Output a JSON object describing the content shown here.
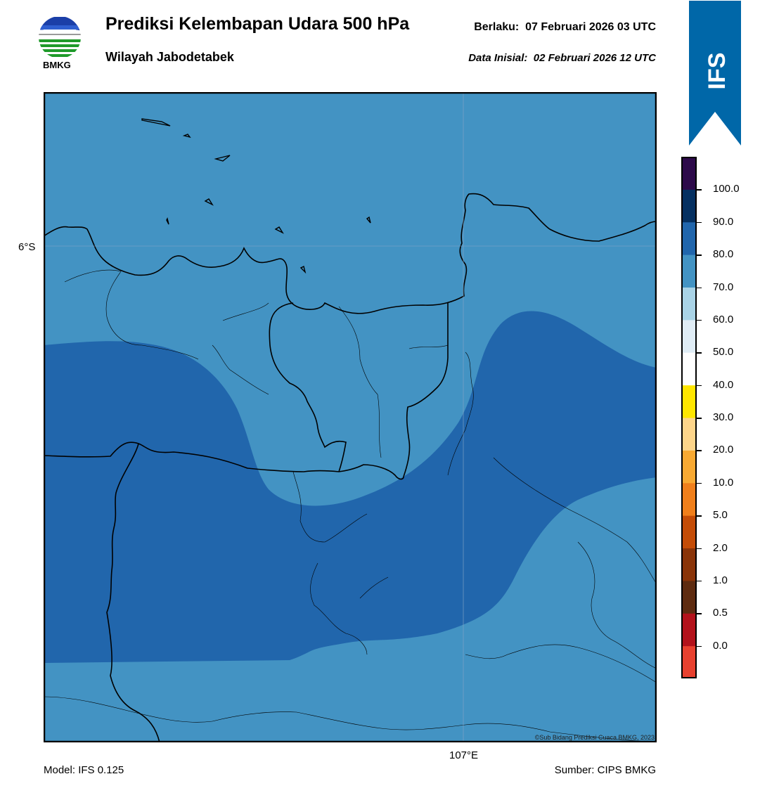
{
  "header": {
    "title": "Prediksi Kelembapan Udara 500 hPa",
    "subtitle": "Wilayah Jabodetabek",
    "valid_label": "Berlaku:",
    "valid_value": "07 Februari 2026 03 UTC",
    "init_label": "Data Inisial:",
    "init_value": "02 Februari 2026 12 UTC"
  },
  "logo": {
    "icon": "bmkg-logo-icon",
    "text": "BMKG"
  },
  "model_badge": {
    "icon": "ifs-ribbon-icon",
    "text": "IFS"
  },
  "map": {
    "lat_label": "6°S",
    "lon_label": "107°E",
    "credit": "©Sub Bidang Prediksi Cuaca BMKG, 2023"
  },
  "colorbar": {
    "levels": [
      {
        "label": "0.0",
        "color": "#b3121b"
      },
      {
        "label": "0.5",
        "color": "#5e2b10"
      },
      {
        "label": "1.0",
        "color": "#8a3409"
      },
      {
        "label": "2.0",
        "color": "#c44c07"
      },
      {
        "label": "5.0",
        "color": "#f07f1b"
      },
      {
        "label": "10.0",
        "color": "#f8a932"
      },
      {
        "label": "20.0",
        "color": "#fdd58a"
      },
      {
        "label": "30.0",
        "color": "#ffe600"
      },
      {
        "label": "40.0",
        "color": "#ffffff"
      },
      {
        "label": "50.0",
        "color": "#e0edf6"
      },
      {
        "label": "60.0",
        "color": "#a9d3e6"
      },
      {
        "label": "70.0",
        "color": "#4393c3"
      },
      {
        "label": "80.0",
        "color": "#2166ac"
      },
      {
        "label": "90.0",
        "color": "#053061"
      },
      {
        "label": "100.0",
        "color": "#2d0a4a"
      }
    ],
    "low_color": "#e8412f"
  },
  "colors": {
    "humidity_70_80": "#4393c3",
    "humidity_80_90": "#2166ac",
    "ifs_blue": "#0067a8"
  },
  "footer": {
    "model": "Model: IFS 0.125",
    "source": "Sumber: CIPS BMKG"
  }
}
